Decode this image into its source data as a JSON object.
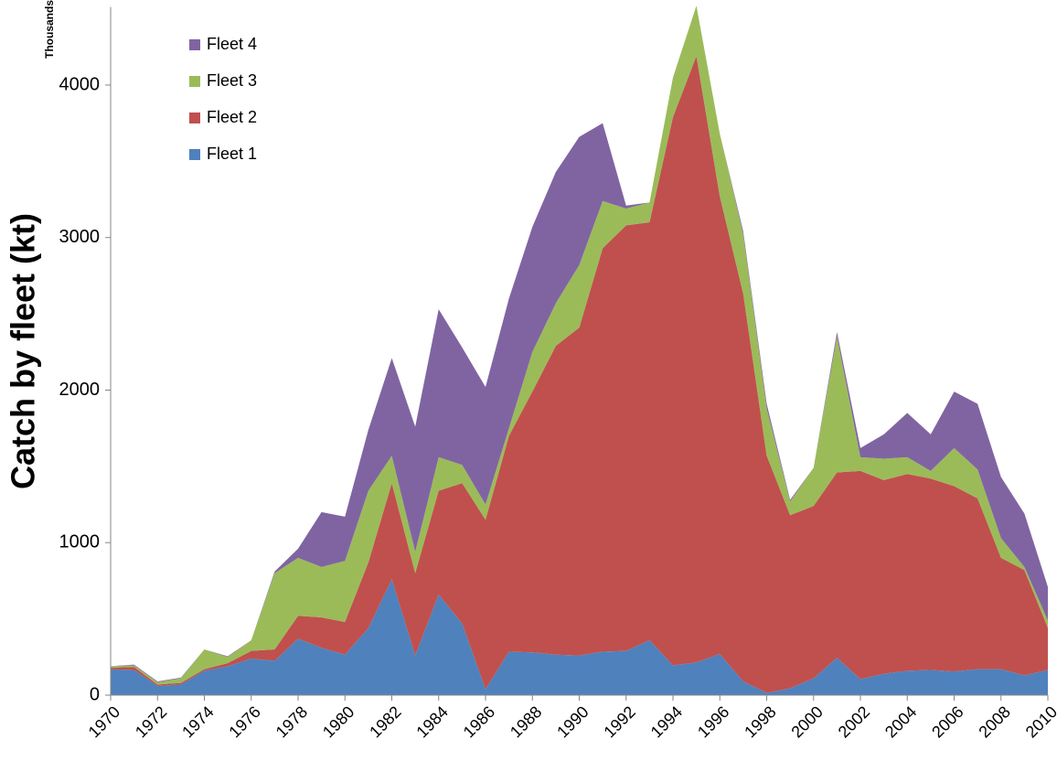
{
  "chart_data": {
    "type": "stacked-area",
    "y_label": "Catch by fleet (kt)",
    "y_unit_label": "Thousands",
    "x": [
      1970,
      1971,
      1972,
      1973,
      1974,
      1975,
      1976,
      1977,
      1978,
      1979,
      1980,
      1981,
      1982,
      1983,
      1984,
      1985,
      1986,
      1987,
      1988,
      1989,
      1990,
      1991,
      1992,
      1993,
      1994,
      1995,
      1996,
      1997,
      1998,
      1999,
      2000,
      2001,
      2002,
      2003,
      2004,
      2005,
      2006,
      2007,
      2008,
      2009,
      2010
    ],
    "xlim": [
      1970,
      2010
    ],
    "xticks": [
      1970,
      1972,
      1974,
      1976,
      1978,
      1980,
      1982,
      1984,
      1986,
      1988,
      1990,
      1992,
      1994,
      1996,
      1998,
      2000,
      2002,
      2004,
      2006,
      2008,
      2010
    ],
    "ylim": [
      0,
      4500
    ],
    "yticks": [
      0,
      1000,
      2000,
      3000,
      4000
    ],
    "legend": "upper left",
    "series": [
      {
        "name": "Fleet 1",
        "color": "#4f81bd",
        "values": [
          170,
          165,
          60,
          70,
          160,
          190,
          240,
          225,
          370,
          310,
          265,
          440,
          760,
          260,
          660,
          470,
          40,
          285,
          280,
          265,
          260,
          285,
          290,
          360,
          195,
          215,
          270,
          90,
          15,
          45,
          110,
          245,
          105,
          140,
          160,
          165,
          155,
          170,
          170,
          130,
          165
        ]
      },
      {
        "name": "Fleet 2",
        "color": "#c0504d",
        "values": [
          10,
          20,
          10,
          10,
          10,
          20,
          50,
          75,
          150,
          200,
          215,
          430,
          630,
          540,
          680,
          920,
          1110,
          1415,
          1710,
          2025,
          2150,
          2645,
          2790,
          2740,
          3595,
          3975,
          3000,
          2540,
          1555,
          1135,
          1130,
          1215,
          1365,
          1270,
          1290,
          1255,
          1215,
          1120,
          730,
          690,
          275
        ]
      },
      {
        "name": "Fleet 3",
        "color": "#9bbb59",
        "values": [
          10,
          10,
          15,
          30,
          130,
          40,
          70,
          500,
          380,
          330,
          400,
          470,
          180,
          140,
          220,
          120,
          100,
          50,
          260,
          280,
          410,
          310,
          110,
          130,
          260,
          330,
          410,
          390,
          310,
          90,
          250,
          890,
          90,
          140,
          110,
          50,
          250,
          190,
          130,
          20,
          50
        ]
      },
      {
        "name": "Fleet 4",
        "color": "#8064a2",
        "values": [
          0,
          5,
          5,
          5,
          0,
          5,
          0,
          10,
          60,
          360,
          290,
          400,
          640,
          820,
          970,
          770,
          770,
          850,
          820,
          860,
          840,
          510,
          20,
          0,
          0,
          0,
          0,
          20,
          30,
          10,
          0,
          30,
          60,
          160,
          290,
          240,
          370,
          430,
          400,
          350,
          220
        ]
      }
    ]
  }
}
